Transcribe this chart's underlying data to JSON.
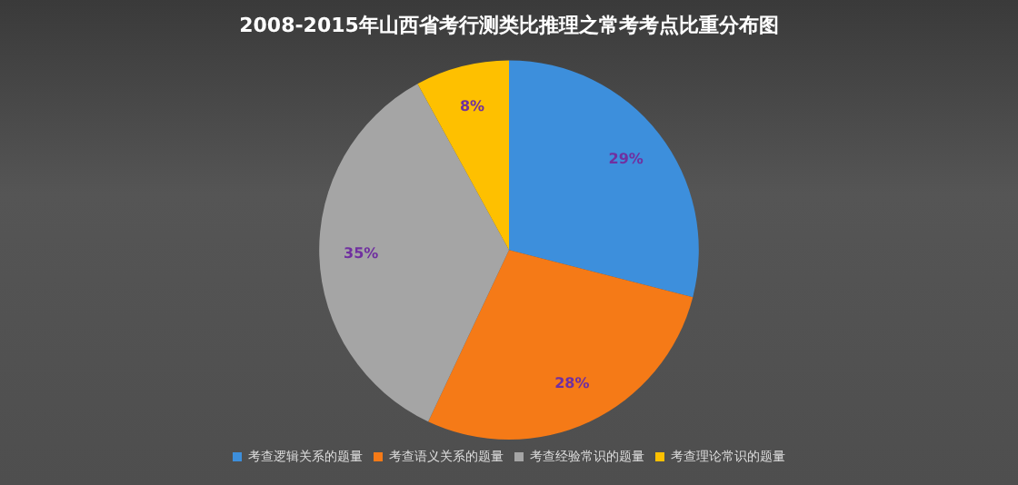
{
  "chart_data": {
    "type": "pie",
    "title": "2008-2015年山西省考行测类比推理之常考考点比重分布图",
    "categories": [
      "考查逻辑关系的题量",
      "考查语义关系的题量",
      "考查经验常识的题量",
      "考查理论常识的题量"
    ],
    "values": [
      29,
      28,
      35,
      8
    ],
    "colors": [
      "#3d8fdc",
      "#f57a17",
      "#a5a5a5",
      "#fec000"
    ],
    "value_labels": [
      "29%",
      "28%",
      "35%",
      "8%"
    ],
    "legend": "bottom"
  }
}
